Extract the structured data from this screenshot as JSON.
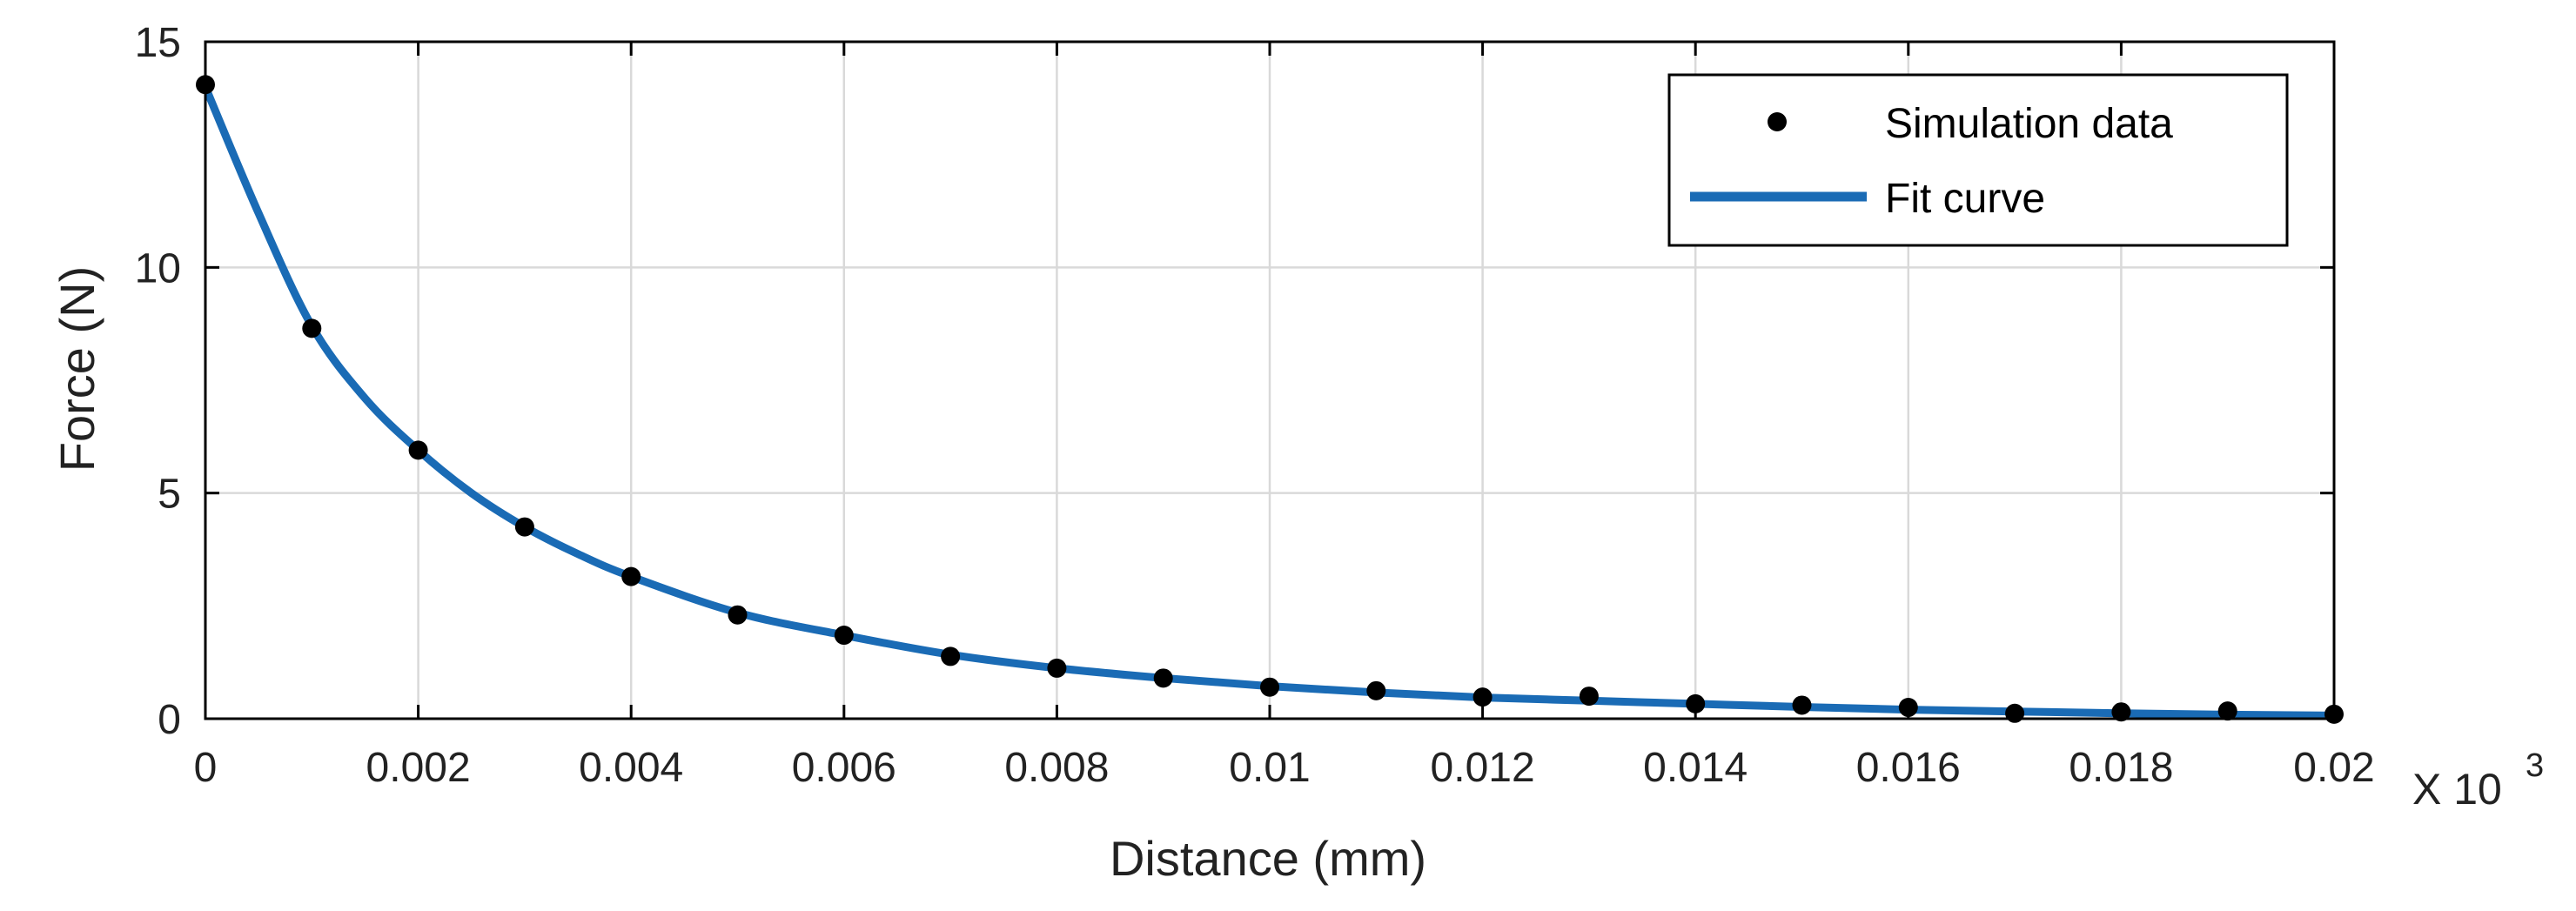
{
  "chart_data": {
    "type": "scatter",
    "title": "",
    "xlabel": "Distance (mm)",
    "ylabel": "Force (N)",
    "x_multiplier": "X 10",
    "x_multiplier_exp": "3",
    "xlim": [
      0,
      0.02
    ],
    "ylim": [
      0,
      15
    ],
    "xticks": [
      0,
      0.002,
      0.004,
      0.006,
      0.008,
      0.01,
      0.012,
      0.014,
      0.016,
      0.018,
      0.02
    ],
    "xtick_labels": [
      "0",
      "0.002",
      "0.004",
      "0.006",
      "0.008",
      "0.01",
      "0.012",
      "0.014",
      "0.016",
      "0.018",
      "0.02"
    ],
    "yticks": [
      0,
      5,
      10,
      15
    ],
    "ytick_labels": [
      "0",
      "5",
      "10",
      "15"
    ],
    "grid": true,
    "legend_position": "top-right",
    "series": [
      {
        "name": "Simulation data",
        "kind": "scatter",
        "color": "#000000",
        "x": [
          0,
          0.001,
          0.002,
          0.003,
          0.004,
          0.005,
          0.006,
          0.007,
          0.008,
          0.009,
          0.01,
          0.011,
          0.012,
          0.013,
          0.014,
          0.015,
          0.016,
          0.017,
          0.018,
          0.019,
          0.02
        ],
        "y": [
          14.05,
          8.65,
          5.95,
          4.25,
          3.15,
          2.3,
          1.85,
          1.38,
          1.12,
          0.9,
          0.7,
          0.62,
          0.48,
          0.5,
          0.33,
          0.3,
          0.25,
          0.12,
          0.15,
          0.17,
          0.1
        ]
      },
      {
        "name": "Fit curve",
        "kind": "line",
        "color": "#1a6bb5",
        "x": [
          0,
          0.0005,
          0.001,
          0.0015,
          0.002,
          0.0025,
          0.003,
          0.0035,
          0.004,
          0.005,
          0.006,
          0.007,
          0.008,
          0.009,
          0.01,
          0.011,
          0.012,
          0.013,
          0.014,
          0.015,
          0.016,
          0.017,
          0.018,
          0.019,
          0.02
        ],
        "y": [
          14.0,
          11.2,
          8.7,
          7.1,
          5.95,
          5.0,
          4.25,
          3.65,
          3.15,
          2.35,
          1.85,
          1.42,
          1.12,
          0.9,
          0.72,
          0.58,
          0.47,
          0.4,
          0.33,
          0.26,
          0.2,
          0.16,
          0.12,
          0.09,
          0.07
        ]
      }
    ]
  }
}
